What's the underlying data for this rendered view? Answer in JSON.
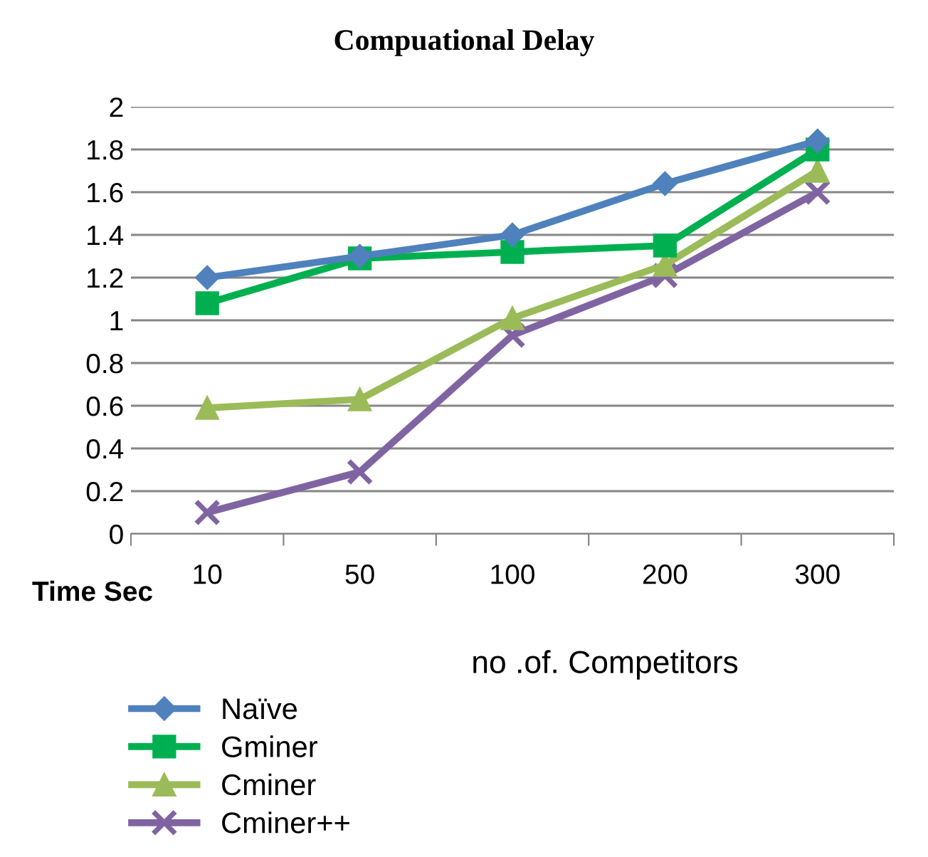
{
  "chart_data": {
    "type": "line",
    "title": "Compuational Delay",
    "xlabel": "no .of. Competitors",
    "ylabel": "Time Sec",
    "categories": [
      "10",
      "50",
      "100",
      "200",
      "300"
    ],
    "series": [
      {
        "name": "Naïve",
        "color": "#4f81bd",
        "marker": "diamond",
        "values": [
          1.2,
          1.3,
          1.4,
          1.64,
          1.84
        ]
      },
      {
        "name": "Gminer",
        "color": "#00b050",
        "marker": "square",
        "values": [
          1.08,
          1.29,
          1.32,
          1.35,
          1.8
        ]
      },
      {
        "name": "Cminer",
        "color": "#9bbb59",
        "marker": "triangle",
        "values": [
          0.59,
          0.63,
          1.01,
          1.26,
          1.7
        ]
      },
      {
        "name": "Cminer++",
        "color": "#8064a2",
        "marker": "cross",
        "values": [
          0.1,
          0.29,
          0.93,
          1.21,
          1.6
        ]
      }
    ],
    "ylim": [
      0,
      2
    ],
    "yticks": [
      0,
      0.2,
      0.4,
      0.6,
      0.8,
      1,
      1.2,
      1.4,
      1.6,
      1.8,
      2
    ],
    "grid": "y",
    "legend": "bottom left"
  }
}
